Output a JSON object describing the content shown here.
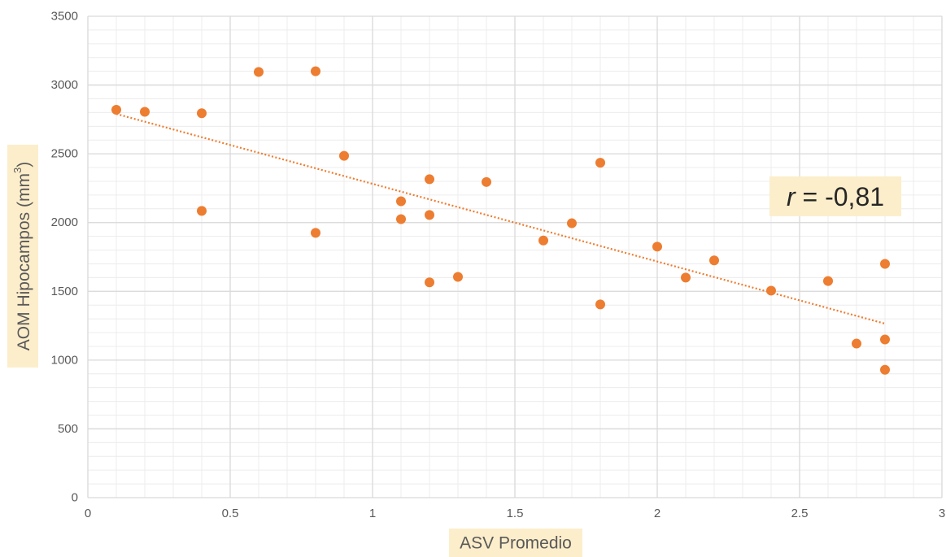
{
  "chart_data": {
    "type": "scatter",
    "title": "",
    "xlabel": "ASV Promedio",
    "ylabel_main": "AOM Hipocampos (mm",
    "ylabel_sup": "3",
    "ylabel_close": ")",
    "xlim": [
      0,
      3
    ],
    "ylim": [
      0,
      3500
    ],
    "x_ticks": [
      "0",
      "0.5",
      "1",
      "1.5",
      "2",
      "2.5",
      "3"
    ],
    "y_ticks": [
      "0",
      "500",
      "1000",
      "1500",
      "2000",
      "2500",
      "3000",
      "3500"
    ],
    "grid": true,
    "minor_grid": true,
    "points": [
      {
        "x": 0.1,
        "y": 2820
      },
      {
        "x": 0.2,
        "y": 2805
      },
      {
        "x": 0.4,
        "y": 2795
      },
      {
        "x": 0.4,
        "y": 2085
      },
      {
        "x": 0.6,
        "y": 3095
      },
      {
        "x": 0.8,
        "y": 3100
      },
      {
        "x": 0.8,
        "y": 1925
      },
      {
        "x": 0.9,
        "y": 2485
      },
      {
        "x": 1.1,
        "y": 2155
      },
      {
        "x": 1.1,
        "y": 2025
      },
      {
        "x": 1.2,
        "y": 2315
      },
      {
        "x": 1.2,
        "y": 2055
      },
      {
        "x": 1.2,
        "y": 1565
      },
      {
        "x": 1.3,
        "y": 1605
      },
      {
        "x": 1.4,
        "y": 2295
      },
      {
        "x": 1.6,
        "y": 1870
      },
      {
        "x": 1.7,
        "y": 1995
      },
      {
        "x": 1.8,
        "y": 2435
      },
      {
        "x": 1.8,
        "y": 1405
      },
      {
        "x": 2.0,
        "y": 1825
      },
      {
        "x": 2.1,
        "y": 1600
      },
      {
        "x": 2.2,
        "y": 1725
      },
      {
        "x": 2.4,
        "y": 1505
      },
      {
        "x": 2.6,
        "y": 1575
      },
      {
        "x": 2.7,
        "y": 1120
      },
      {
        "x": 2.8,
        "y": 1700
      },
      {
        "x": 2.8,
        "y": 1150
      },
      {
        "x": 2.8,
        "y": 930
      }
    ],
    "trendline": {
      "x1": 0.1,
      "y1": 2790,
      "x2": 2.8,
      "y2": 1265
    },
    "annotation": {
      "r_label": "r",
      "r_value": " = -0,81"
    },
    "colors": {
      "marker": "#ed7d31",
      "trend": "#ed7d31",
      "grid": "#d9d9d9",
      "label_bg": "#fdeecb"
    }
  }
}
